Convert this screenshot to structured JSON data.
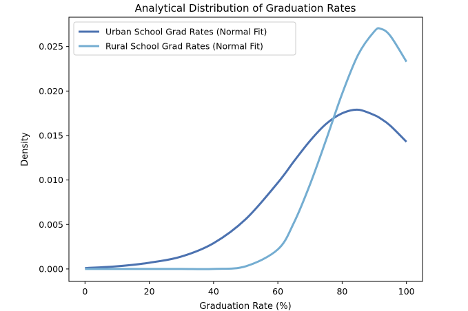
{
  "chart_data": {
    "type": "line",
    "title": "Analytical Distribution of Graduation Rates",
    "xlabel": "Graduation Rate (%)",
    "ylabel": "Density",
    "xlim": [
      -5,
      105
    ],
    "ylim": [
      -0.0014,
      0.0283
    ],
    "xticks": [
      0,
      20,
      40,
      60,
      80,
      100
    ],
    "yticks": [
      0.0,
      0.005,
      0.01,
      0.015,
      0.02,
      0.025
    ],
    "ytick_labels": [
      "0.000",
      "0.005",
      "0.010",
      "0.015",
      "0.020",
      "0.025"
    ],
    "grid": false,
    "legend_position": "top-left",
    "x": [
      0,
      10,
      20,
      30,
      40,
      50,
      60,
      65,
      70,
      75,
      80,
      85,
      90,
      92,
      95,
      100
    ],
    "series": [
      {
        "name": "Urban School Grad Rates (Normal Fit)",
        "color": "#4c72b0",
        "values": [
          0.0001,
          0.0003,
          0.0007,
          0.0014,
          0.0029,
          0.0056,
          0.0097,
          0.0121,
          0.0144,
          0.0163,
          0.0175,
          0.0179,
          0.0173,
          0.0169,
          0.0161,
          0.0143
        ]
      },
      {
        "name": "Rural School Grad Rates (Normal Fit)",
        "color": "#74add1",
        "values": [
          0.0,
          0.0,
          0.0,
          0.0,
          0.0,
          0.0003,
          0.0022,
          0.0052,
          0.0095,
          0.0145,
          0.0197,
          0.0241,
          0.0267,
          0.027,
          0.0262,
          0.0233
        ]
      }
    ]
  }
}
